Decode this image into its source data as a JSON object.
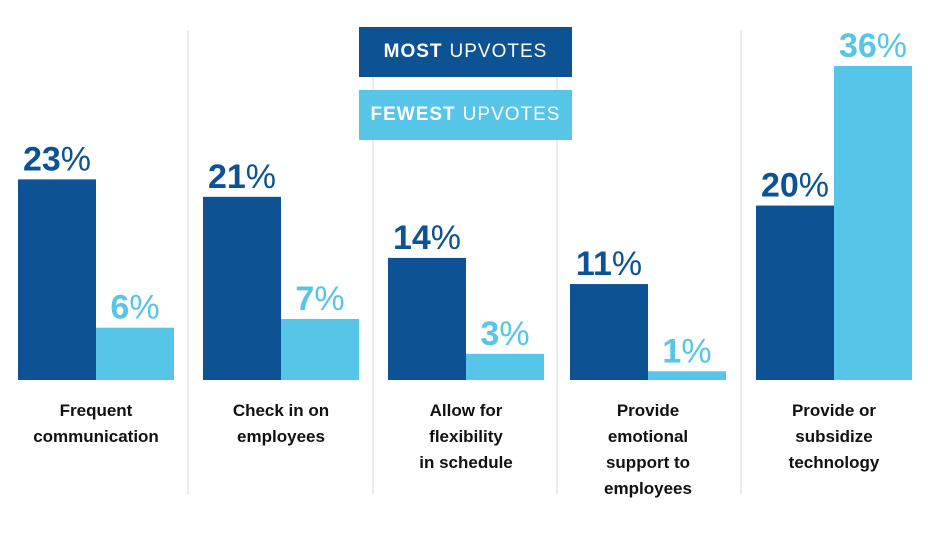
{
  "chart_data": {
    "type": "bar",
    "categories": [
      [
        "Frequent",
        "communication"
      ],
      [
        "Check in on",
        "employees"
      ],
      [
        "Allow for",
        "flexibility",
        "in schedule"
      ],
      [
        "Provide",
        "emotional",
        "support to",
        "employees"
      ],
      [
        "Provide or",
        "subsidize",
        "technology"
      ]
    ],
    "series": [
      {
        "key": "most",
        "values": [
          23,
          21,
          14,
          11,
          20
        ],
        "color": "#0d5394",
        "label_color": "#0d5394"
      },
      {
        "key": "fewest",
        "values": [
          6,
          7,
          3,
          1,
          36
        ],
        "color": "#56c5e8",
        "label_color": "#56c5e8"
      }
    ],
    "value_suffix": "%",
    "ylim": [
      0,
      36
    ],
    "legend": {
      "most": {
        "strong": "MOST",
        "rest": "UPVOTES",
        "color": "#0d5394"
      },
      "fewest": {
        "strong": "FEWEST",
        "rest": "UPVOTES",
        "color": "#56c5e8"
      }
    },
    "grid": false
  }
}
